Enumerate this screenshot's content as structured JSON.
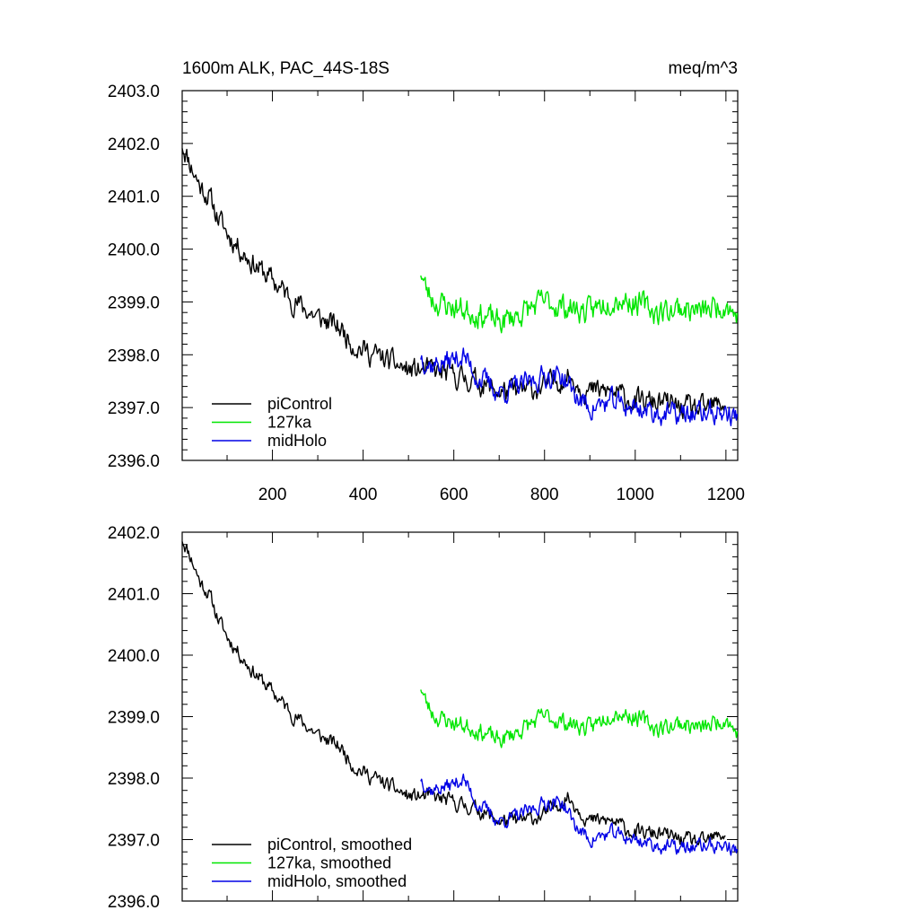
{
  "figure": {
    "title_left": "1600m ALK, PAC_44S-18S",
    "title_right": "meq/m^3"
  },
  "colors": {
    "piControl": "#000000",
    "127ka": "#00e600",
    "midHolo": "#0000e6"
  },
  "chart_data": [
    {
      "type": "line",
      "title": "1600m ALK, PAC_44S-18S",
      "ylabel": "",
      "xlabel": "",
      "xlim": [
        1,
        1226
      ],
      "ylim": [
        2396.0,
        2403.0
      ],
      "xticks": [
        200,
        400,
        600,
        800,
        1000,
        1200
      ],
      "xtick_labels": [
        "200",
        "400",
        "600",
        "800",
        "1000",
        "1200"
      ],
      "yticks": [
        2396.0,
        2397.0,
        2398.0,
        2399.0,
        2400.0,
        2401.0,
        2402.0,
        2403.0
      ],
      "ytick_labels": [
        "2396.0",
        "2397.0",
        "2398.0",
        "2399.0",
        "2400.0",
        "2401.0",
        "2402.0",
        "2403.0"
      ],
      "legend_position": "bottom-left",
      "grid": false,
      "series": [
        {
          "name": "piControl",
          "color": "#000000",
          "noise": 0.18,
          "seed": 11,
          "x": [
            1,
            20,
            40,
            60,
            80,
            100,
            150,
            200,
            250,
            300,
            350,
            380,
            400,
            450,
            500,
            550,
            600,
            650,
            700,
            750,
            800,
            850,
            900,
            950,
            1000,
            1050,
            1100,
            1150,
            1200
          ],
          "y": [
            2402.0,
            2401.6,
            2401.2,
            2401.0,
            2400.6,
            2400.3,
            2399.8,
            2399.4,
            2399.0,
            2398.7,
            2398.5,
            2398.2,
            2398.1,
            2397.9,
            2397.7,
            2397.7,
            2397.6,
            2397.5,
            2397.3,
            2397.3,
            2397.4,
            2397.6,
            2397.3,
            2397.3,
            2397.1,
            2397.1,
            2397.0,
            2396.95,
            2397.1
          ]
        },
        {
          "name": "127ka",
          "color": "#00e600",
          "noise": 0.2,
          "seed": 23,
          "x": [
            527,
            540,
            560,
            600,
            650,
            700,
            750,
            800,
            850,
            900,
            950,
            1000,
            1050,
            1100,
            1150,
            1200,
            1226
          ],
          "y": [
            2399.6,
            2399.2,
            2399.0,
            2398.9,
            2398.8,
            2398.6,
            2398.8,
            2399.0,
            2398.9,
            2398.8,
            2399.1,
            2399.0,
            2398.8,
            2398.9,
            2398.8,
            2399.0,
            2398.7
          ]
        },
        {
          "name": "midHolo",
          "color": "#0000e6",
          "noise": 0.18,
          "seed": 37,
          "x": [
            527,
            550,
            600,
            620,
            650,
            700,
            750,
            800,
            840,
            870,
            900,
            950,
            1000,
            1050,
            1100,
            1150,
            1200,
            1226
          ],
          "y": [
            2398.0,
            2397.8,
            2397.9,
            2398.0,
            2397.6,
            2397.3,
            2397.4,
            2397.6,
            2397.6,
            2397.2,
            2397.0,
            2397.1,
            2397.0,
            2396.9,
            2396.85,
            2396.9,
            2396.9,
            2396.8
          ]
        }
      ]
    },
    {
      "type": "line",
      "title": "",
      "ylabel": "",
      "xlabel": "",
      "xlim": [
        1,
        1226
      ],
      "ylim": [
        2396.0,
        2402.0
      ],
      "xticks": [
        200,
        400,
        600,
        800,
        1000,
        1200
      ],
      "xtick_labels": [],
      "yticks": [
        2396.0,
        2397.0,
        2398.0,
        2399.0,
        2400.0,
        2401.0,
        2402.0
      ],
      "ytick_labels": [
        "2396.0",
        "2397.0",
        "2398.0",
        "2399.0",
        "2400.0",
        "2401.0",
        "2402.0"
      ],
      "legend_position": "bottom-left",
      "grid": false,
      "series": [
        {
          "name": "piControl, smoothed",
          "color": "#000000",
          "noise": 0.1,
          "seed": 11,
          "x": [
            1,
            20,
            40,
            60,
            80,
            100,
            150,
            200,
            250,
            300,
            350,
            380,
            400,
            450,
            500,
            550,
            600,
            650,
            700,
            750,
            800,
            850,
            900,
            950,
            1000,
            1050,
            1100,
            1150,
            1200
          ],
          "y": [
            2401.9,
            2401.6,
            2401.2,
            2401.0,
            2400.6,
            2400.3,
            2399.8,
            2399.4,
            2399.0,
            2398.7,
            2398.5,
            2398.2,
            2398.1,
            2397.9,
            2397.7,
            2397.7,
            2397.6,
            2397.5,
            2397.3,
            2397.3,
            2397.4,
            2397.7,
            2397.3,
            2397.3,
            2397.1,
            2397.1,
            2397.0,
            2396.95,
            2397.1
          ]
        },
        {
          "name": "127ka, smoothed",
          "color": "#00e600",
          "noise": 0.12,
          "seed": 23,
          "x": [
            527,
            540,
            560,
            600,
            650,
            700,
            750,
            800,
            850,
            900,
            950,
            1000,
            1050,
            1100,
            1150,
            1200,
            1226
          ],
          "y": [
            2399.5,
            2399.2,
            2399.0,
            2398.9,
            2398.8,
            2398.6,
            2398.8,
            2399.0,
            2398.9,
            2398.8,
            2399.1,
            2399.0,
            2398.8,
            2398.9,
            2398.8,
            2399.0,
            2398.7
          ]
        },
        {
          "name": "midHolo, smoothed",
          "color": "#0000e6",
          "noise": 0.1,
          "seed": 37,
          "x": [
            527,
            550,
            600,
            620,
            650,
            700,
            750,
            800,
            840,
            870,
            900,
            950,
            1000,
            1050,
            1100,
            1150,
            1200,
            1226
          ],
          "y": [
            2398.0,
            2397.8,
            2397.9,
            2398.0,
            2397.6,
            2397.3,
            2397.4,
            2397.6,
            2397.6,
            2397.2,
            2397.0,
            2397.1,
            2397.0,
            2396.9,
            2396.85,
            2396.9,
            2396.9,
            2396.8
          ]
        }
      ]
    }
  ]
}
